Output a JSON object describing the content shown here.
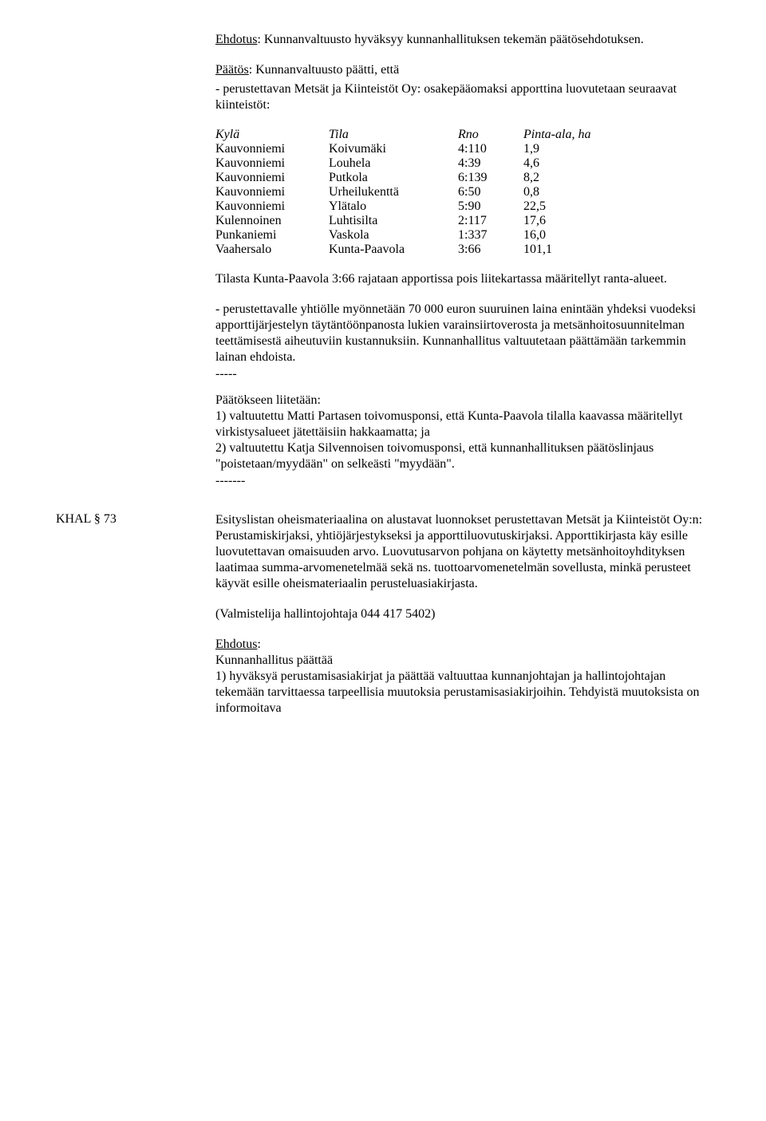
{
  "sec1": {
    "label": "Ehdotus",
    "text": ": Kunnanvaltuusto hyväksyy kunnanhallituksen tekemän päätösehdotuksen."
  },
  "sec2": {
    "label": "Päätös",
    "text": ": Kunnanvaltuusto päätti, että",
    "bullet": "- perustettavan Metsät ja Kiinteistöt Oy: osakepääomaksi apporttina luovutetaan seuraavat kiinteistöt:"
  },
  "table": {
    "headers": {
      "c1": "Kylä",
      "c2": "Tila",
      "c3": "Rno",
      "c4": "Pinta-ala, ha"
    },
    "rows": [
      {
        "c1": "Kauvonniemi",
        "c2": "Koivumäki",
        "c3": "4:110",
        "c4": "1,9"
      },
      {
        "c1": "Kauvonniemi",
        "c2": "Louhela",
        "c3": "4:39",
        "c4": "4,6"
      },
      {
        "c1": "Kauvonniemi",
        "c2": "Putkola",
        "c3": "6:139",
        "c4": "8,2"
      },
      {
        "c1": "Kauvonniemi",
        "c2": "Urheilukenttä",
        "c3": "6:50",
        "c4": "0,8"
      },
      {
        "c1": "Kauvonniemi",
        "c2": "Ylätalo",
        "c3": "5:90",
        "c4": "22,5"
      },
      {
        "c1": "Kulennoinen",
        "c2": "Luhtisilta",
        "c3": "2:117",
        "c4": "17,6"
      },
      {
        "c1": "Punkaniemi",
        "c2": "Vaskola",
        "c3": "1:337",
        "c4": "16,0"
      },
      {
        "c1": "Vaahersalo",
        "c2": "Kunta-Paavola",
        "c3": "3:66",
        "c4": "101,1"
      }
    ]
  },
  "after_table": "Tilasta Kunta-Paavola 3:66 rajataan apportissa pois liitekartassa määritellyt ranta-alueet.",
  "loan": "- perustettavalle yhtiölle myönnetään 70 000 euron suuruinen laina enintään yhdeksi vuodeksi apporttijärjestelyn täytäntöönpanosta lukien varainsiirtoverosta ja metsänhoitosuunnitelman teettämisestä aiheutuviin kustannuksiin. Kunnanhallitus valtuutetaan päättämään tarkemmin lainan ehdoista.",
  "dashes1": "-----",
  "attach": {
    "lead": "Päätökseen liitetään:",
    "l1": "1) valtuutettu Matti Partasen toivomusponsi, että Kunta-Paavola tilalla kaavassa määritellyt virkistysalueet jätettäisiin hakkaamatta; ja",
    "l2": "2) valtuutettu Katja Silvennoisen toivomusponsi, että kunnanhallituksen päätöslinjaus \"poistetaan/myydään\" on selkeästi \"myydään\"."
  },
  "dashes2": "-------",
  "khal": {
    "label": "KHAL  § 73",
    "p1": "Esityslistan oheismateriaalina on alustavat luonnokset perustettavan Metsät ja Kiinteistöt Oy:n: Perustamiskirjaksi, yhtiöjärjestykseksi ja apporttiluovutuskirjaksi. Apporttikirjasta käy esille luovutettavan omaisuuden arvo. Luovutusarvon pohjana on käytetty metsänhoitoyhdityksen laatimaa summa-arvomenetelmää sekä ns. tuottoarvomenetelmän sovellusta, minkä perusteet käyvät esille oheismateriaalin perusteluasiakirjasta.",
    "p2": "(Valmistelija hallintojohtaja 044 417 5402)",
    "eh_label": "Ehdotus",
    "eh_colon": ":",
    "eh_lead": "Kunnanhallitus päättää",
    "eh_l1": "1) hyväksyä perustamisasiakirjat ja päättää valtuuttaa kunnanjohtajan ja hallintojohtajan tekemään tarvittaessa tarpeellisia muutoksia perustamisasiakirjoihin. Tehdyistä muutoksista on informoitava"
  }
}
